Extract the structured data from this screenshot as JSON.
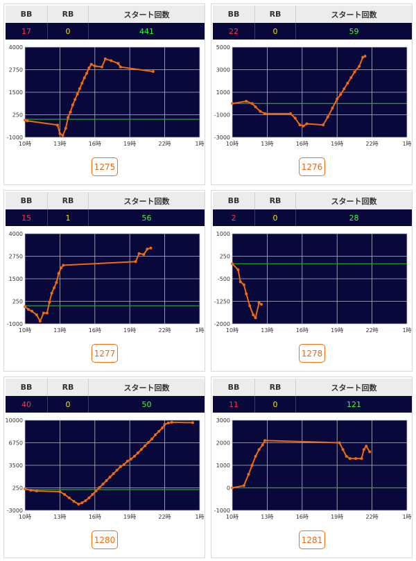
{
  "headers": {
    "bb": "BB",
    "rb": "RB",
    "start": "スタート回数"
  },
  "x_ticks": [
    "10時",
    "13時",
    "16時",
    "19時",
    "22時",
    "1時"
  ],
  "colors": {
    "plot_bg": "#08083a",
    "line": "#f06a10",
    "zero_line": "#22aa22",
    "grid": "#b8b8c8"
  },
  "machines": [
    {
      "id": "1275",
      "bb": "17",
      "rb": "0",
      "start": "441",
      "chart_data": {
        "type": "line",
        "xlim": [
          10,
          25
        ],
        "ylim": [
          -1000,
          4000
        ],
        "y_ticks": [
          "4000",
          "2750",
          "1500",
          "250",
          "-1000"
        ],
        "baseline": 0,
        "points": [
          [
            10.0,
            -50
          ],
          [
            10.2,
            -90
          ],
          [
            12.8,
            -320
          ],
          [
            13.0,
            -800
          ],
          [
            13.25,
            -900
          ],
          [
            13.5,
            -500
          ],
          [
            13.7,
            100
          ],
          [
            13.9,
            400
          ],
          [
            14.1,
            800
          ],
          [
            14.3,
            1100
          ],
          [
            14.5,
            1400
          ],
          [
            14.7,
            1700
          ],
          [
            14.9,
            2000
          ],
          [
            15.1,
            2300
          ],
          [
            15.3,
            2550
          ],
          [
            15.5,
            2850
          ],
          [
            15.7,
            3050
          ],
          [
            16.0,
            2950
          ],
          [
            16.6,
            2900
          ],
          [
            16.9,
            3350
          ],
          [
            17.4,
            3250
          ],
          [
            18.0,
            3100
          ],
          [
            18.2,
            2900
          ],
          [
            21.0,
            2650
          ]
        ]
      }
    },
    {
      "id": "1276",
      "bb": "22",
      "rb": "0",
      "start": "59",
      "chart_data": {
        "type": "line",
        "xlim": [
          10,
          25
        ],
        "ylim": [
          -3000,
          5000
        ],
        "y_ticks": [
          "5000",
          "3000",
          "1000",
          "-1000",
          "-3000"
        ],
        "baseline": 0,
        "points": [
          [
            10.0,
            0
          ],
          [
            11.2,
            200
          ],
          [
            11.7,
            0
          ],
          [
            12.0,
            -300
          ],
          [
            12.4,
            -700
          ],
          [
            12.8,
            -900
          ],
          [
            15.0,
            -900
          ],
          [
            15.4,
            -1300
          ],
          [
            15.8,
            -1900
          ],
          [
            16.1,
            -2000
          ],
          [
            16.4,
            -1800
          ],
          [
            17.8,
            -1900
          ],
          [
            18.2,
            -1200
          ],
          [
            18.6,
            -400
          ],
          [
            19.0,
            400
          ],
          [
            19.3,
            800
          ],
          [
            19.6,
            1300
          ],
          [
            19.9,
            1800
          ],
          [
            20.2,
            2300
          ],
          [
            20.5,
            2800
          ],
          [
            20.9,
            3300
          ],
          [
            21.2,
            4100
          ],
          [
            21.4,
            4200
          ]
        ]
      }
    },
    {
      "id": "1277",
      "bb": "15",
      "rb": "1",
      "start": "56",
      "chart_data": {
        "type": "line",
        "xlim": [
          10,
          25
        ],
        "ylim": [
          -1000,
          4000
        ],
        "y_ticks": [
          "4000",
          "2750",
          "1500",
          "250",
          "-1000"
        ],
        "baseline": 0,
        "points": [
          [
            10.0,
            -50
          ],
          [
            10.3,
            -200
          ],
          [
            10.6,
            -300
          ],
          [
            11.0,
            -500
          ],
          [
            11.3,
            -850
          ],
          [
            11.6,
            -400
          ],
          [
            11.9,
            -400
          ],
          [
            12.1,
            200
          ],
          [
            12.3,
            700
          ],
          [
            12.5,
            1000
          ],
          [
            12.7,
            1300
          ],
          [
            12.9,
            1800
          ],
          [
            13.1,
            2100
          ],
          [
            13.3,
            2250
          ],
          [
            19.5,
            2450
          ],
          [
            19.8,
            2900
          ],
          [
            20.2,
            2850
          ],
          [
            20.5,
            3150
          ],
          [
            20.8,
            3200
          ]
        ]
      }
    },
    {
      "id": "1278",
      "bb": "2",
      "rb": "0",
      "start": "28",
      "chart_data": {
        "type": "line",
        "xlim": [
          10,
          25
        ],
        "ylim": [
          -2000,
          1000
        ],
        "y_ticks": [
          "1000",
          "250",
          "-500",
          "-1250",
          "-2000"
        ],
        "baseline": 0,
        "points": [
          [
            10.0,
            0
          ],
          [
            10.5,
            -200
          ],
          [
            10.7,
            -600
          ],
          [
            11.0,
            -700
          ],
          [
            11.2,
            -1000
          ],
          [
            11.5,
            -1400
          ],
          [
            11.8,
            -1700
          ],
          [
            12.0,
            -1800
          ],
          [
            12.3,
            -1300
          ],
          [
            12.5,
            -1350
          ]
        ]
      }
    },
    {
      "id": "1280",
      "bb": "40",
      "rb": "0",
      "start": "50",
      "chart_data": {
        "type": "line",
        "xlim": [
          10,
          25
        ],
        "ylim": [
          -3000,
          10000
        ],
        "y_ticks": [
          "10000",
          "6750",
          "3500",
          "250",
          "-3000"
        ],
        "baseline": 0,
        "points": [
          [
            10.0,
            100
          ],
          [
            10.5,
            -100
          ],
          [
            11.0,
            -200
          ],
          [
            13.0,
            -300
          ],
          [
            13.4,
            -700
          ],
          [
            13.8,
            -1200
          ],
          [
            14.2,
            -1700
          ],
          [
            14.6,
            -2100
          ],
          [
            14.9,
            -1900
          ],
          [
            15.2,
            -1600
          ],
          [
            15.5,
            -1200
          ],
          [
            15.8,
            -700
          ],
          [
            16.1,
            -200
          ],
          [
            16.4,
            300
          ],
          [
            16.7,
            800
          ],
          [
            17.0,
            1300
          ],
          [
            17.3,
            1800
          ],
          [
            17.6,
            2300
          ],
          [
            17.9,
            2800
          ],
          [
            18.2,
            3300
          ],
          [
            18.5,
            3600
          ],
          [
            18.8,
            4100
          ],
          [
            19.1,
            4400
          ],
          [
            19.4,
            4800
          ],
          [
            19.7,
            5300
          ],
          [
            20.0,
            5800
          ],
          [
            20.3,
            6300
          ],
          [
            20.6,
            6800
          ],
          [
            20.9,
            7300
          ],
          [
            21.2,
            7900
          ],
          [
            21.5,
            8400
          ],
          [
            21.8,
            8900
          ],
          [
            22.0,
            9400
          ],
          [
            22.3,
            9600
          ],
          [
            22.6,
            9700
          ],
          [
            24.4,
            9650
          ]
        ]
      }
    },
    {
      "id": "1281",
      "bb": "11",
      "rb": "0",
      "start": "121",
      "chart_data": {
        "type": "line",
        "xlim": [
          10,
          25
        ],
        "ylim": [
          -1000,
          3000
        ],
        "y_ticks": [
          "3000",
          "2000",
          "1000",
          "0",
          "-1000"
        ],
        "baseline": 0,
        "points": [
          [
            10.0,
            0
          ],
          [
            11.0,
            100
          ],
          [
            11.4,
            600
          ],
          [
            11.7,
            1000
          ],
          [
            12.0,
            1400
          ],
          [
            12.3,
            1700
          ],
          [
            12.6,
            1900
          ],
          [
            12.8,
            2100
          ],
          [
            19.2,
            2000
          ],
          [
            19.5,
            1700
          ],
          [
            19.8,
            1400
          ],
          [
            20.1,
            1300
          ],
          [
            20.6,
            1300
          ],
          [
            21.1,
            1300
          ],
          [
            21.3,
            1700
          ],
          [
            21.5,
            1850
          ],
          [
            21.8,
            1600
          ]
        ]
      }
    }
  ]
}
